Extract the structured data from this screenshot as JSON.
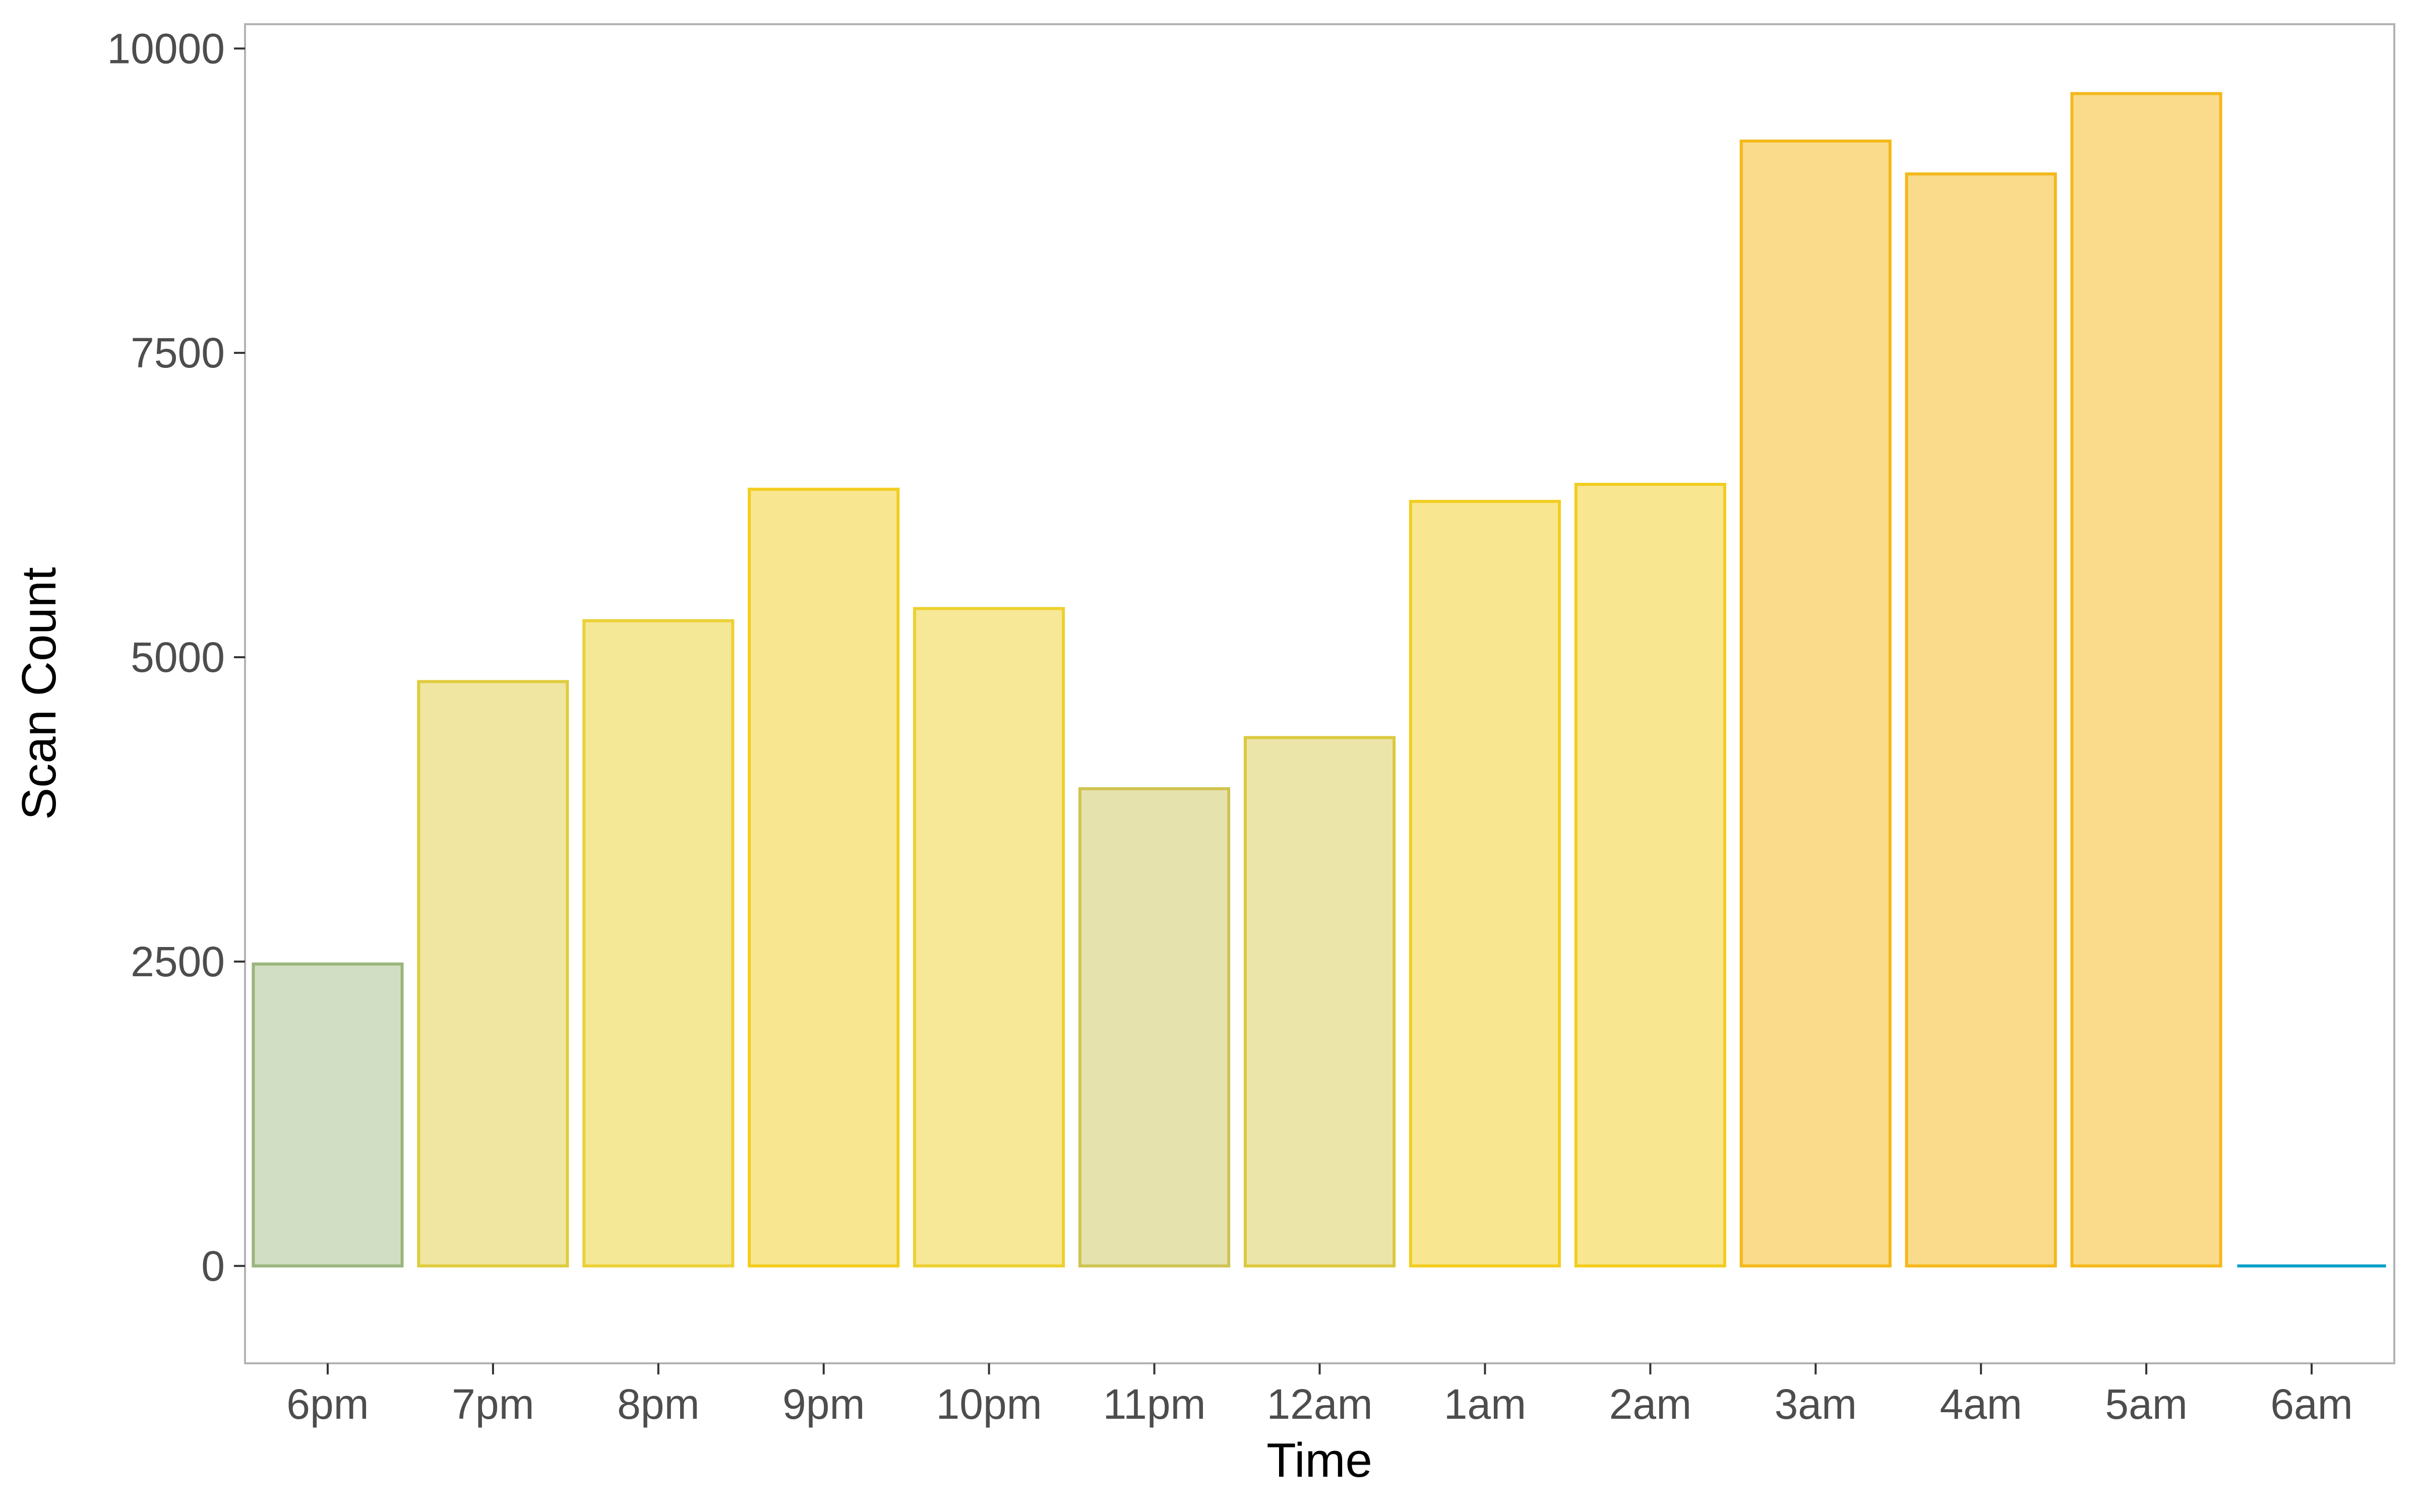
{
  "chart_data": {
    "type": "bar",
    "xlabel": "Time",
    "ylabel": "Scan Count",
    "ylim": [
      -800,
      10200
    ],
    "yticks": [
      0,
      2500,
      5000,
      7500,
      10000
    ],
    "categories": [
      "6pm",
      "7pm",
      "8pm",
      "9pm",
      "10pm",
      "11pm",
      "12am",
      "1am",
      "2am",
      "3am",
      "4am",
      "5am",
      "6am"
    ],
    "values": [
      2480,
      4800,
      5300,
      6380,
      5400,
      3920,
      4340,
      6280,
      6420,
      9240,
      8970,
      9630,
      0
    ],
    "bar_colors": [
      {
        "fill": "#d2dec3",
        "stroke": "#9ab57c"
      },
      {
        "fill": "#f0e6a2",
        "stroke": "#e0cb3c"
      },
      {
        "fill": "#f4e796",
        "stroke": "#ecd034"
      },
      {
        "fill": "#f9e690",
        "stroke": "#f2cd1e"
      },
      {
        "fill": "#f6e896",
        "stroke": "#edd02e"
      },
      {
        "fill": "#e6e2ae",
        "stroke": "#cfc450"
      },
      {
        "fill": "#ece5aa",
        "stroke": "#dcc83e"
      },
      {
        "fill": "#f9e690",
        "stroke": "#f2cd1e"
      },
      {
        "fill": "#f9e690",
        "stroke": "#f2cd1e"
      },
      {
        "fill": "#fadb8c",
        "stroke": "#f4b81a"
      },
      {
        "fill": "#fadb8c",
        "stroke": "#f4b81a"
      },
      {
        "fill": "#fadb8c",
        "stroke": "#f4b81a"
      },
      {
        "fill": "#00a0c8",
        "stroke": "#00a0c8"
      }
    ],
    "grid": false,
    "panel_border": "#b3b3b3"
  }
}
